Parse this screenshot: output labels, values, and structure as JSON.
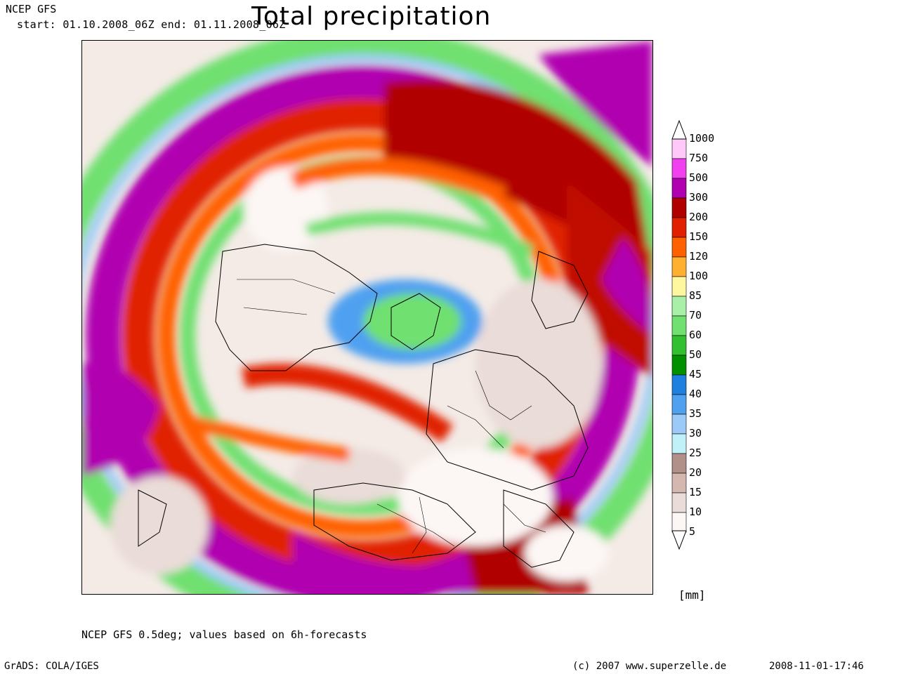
{
  "header": {
    "model": "NCEP GFS",
    "period": "start: 01.10.2008_06Z end: 01.11.2008_06Z",
    "title": "Total precipitation"
  },
  "footer": {
    "note": "NCEP GFS 0.5deg; values based on 6h-forecasts",
    "software": "GrADS: COLA/IGES",
    "copyright": "(c) 2007 www.superzelle.de",
    "timestamp": "2008-11-01-17:46"
  },
  "legend": {
    "unit": "[mm]",
    "levels": [
      "1000",
      "750",
      "500",
      "300",
      "200",
      "150",
      "120",
      "100",
      "85",
      "70",
      "60",
      "50",
      "45",
      "40",
      "35",
      "30",
      "25",
      "20",
      "15",
      "10",
      "5"
    ],
    "colors": [
      "#ffc8f8",
      "#f040f0",
      "#b000b0",
      "#b00000",
      "#e02000",
      "#ff6000",
      "#ffb030",
      "#fff6a0",
      "#a8f0a8",
      "#70e070",
      "#30c030",
      "#009000",
      "#2080e0",
      "#50a0f0",
      "#9ccaf8",
      "#c0f0f8",
      "#b09088",
      "#d4b8b0",
      "#eadcd8",
      "#fcf6f4"
    ]
  },
  "map": {
    "projection": "polar-stereographic",
    "region": "northern-hemisphere"
  }
}
